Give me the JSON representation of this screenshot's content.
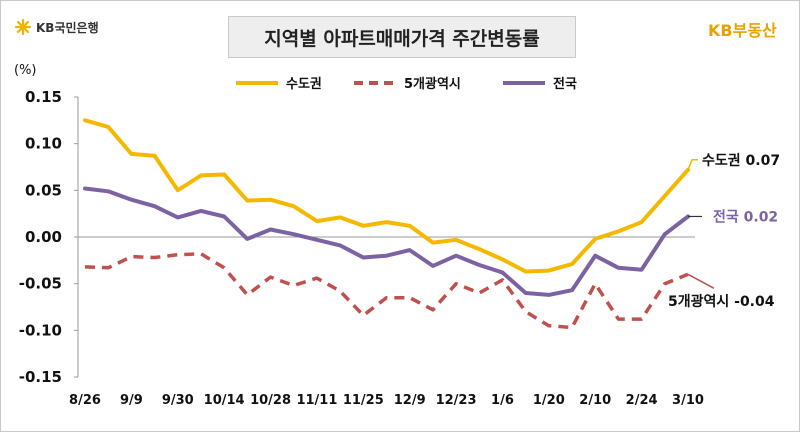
{
  "header": {
    "bank_logo_text": "KB국민은행",
    "title": "지역별 아파트매매가격 주간변동률",
    "brand_text": "KB부동산"
  },
  "colors": {
    "capital": "#f5b800",
    "metro": "#c0504d",
    "national": "#7b62a3",
    "brand": "#e8a300",
    "star": "#f0b400"
  },
  "icons": {
    "bank_logo": "star-icon"
  },
  "chart_data": {
    "type": "line",
    "unit_label": "(%)",
    "ylim": [
      -0.15,
      0.15
    ],
    "yticks": [
      "0.15",
      "0.10",
      "0.05",
      "0.00",
      "-0.05",
      "-0.10",
      "-0.15"
    ],
    "x_tick_labels": [
      "8/26",
      "9/9",
      "9/30",
      "10/14",
      "10/28",
      "11/11",
      "11/25",
      "12/9",
      "12/23",
      "1/6",
      "1/20",
      "2/10",
      "2/24",
      "3/10"
    ],
    "legend_placement": "top",
    "series": [
      {
        "name": "수도권",
        "style": "solid",
        "values": [
          0.125,
          0.118,
          0.089,
          0.087,
          0.05,
          0.066,
          0.067,
          0.039,
          0.04,
          0.033,
          0.017,
          0.021,
          0.012,
          0.016,
          0.012,
          -0.006,
          -0.003,
          -0.013,
          -0.024,
          -0.037,
          -0.036,
          -0.029,
          -0.002,
          0.006,
          0.016,
          0.044,
          0.072
        ]
      },
      {
        "name": "5개광역시",
        "style": "dashed",
        "values": [
          -0.032,
          -0.033,
          -0.021,
          -0.022,
          -0.019,
          -0.018,
          -0.033,
          -0.062,
          -0.043,
          -0.052,
          -0.044,
          -0.058,
          -0.084,
          -0.065,
          -0.065,
          -0.078,
          -0.05,
          -0.06,
          -0.046,
          -0.08,
          -0.095,
          -0.097,
          -0.05,
          -0.088,
          -0.088,
          -0.05,
          -0.04
        ]
      },
      {
        "name": "전국",
        "style": "solid",
        "values": [
          0.052,
          0.049,
          0.04,
          0.033,
          0.021,
          0.028,
          0.022,
          -0.002,
          0.008,
          0.003,
          -0.003,
          -0.009,
          -0.022,
          -0.02,
          -0.014,
          -0.031,
          -0.02,
          -0.03,
          -0.038,
          -0.06,
          -0.062,
          -0.057,
          -0.02,
          -0.033,
          -0.035,
          0.003,
          0.022
        ]
      }
    ],
    "annotations": [
      {
        "series": "수도권",
        "text": "수도권 0.07"
      },
      {
        "series": "전국",
        "text": "전국 0.02"
      },
      {
        "series": "5개광역시",
        "text": "5개광역시 -0.04"
      }
    ]
  }
}
